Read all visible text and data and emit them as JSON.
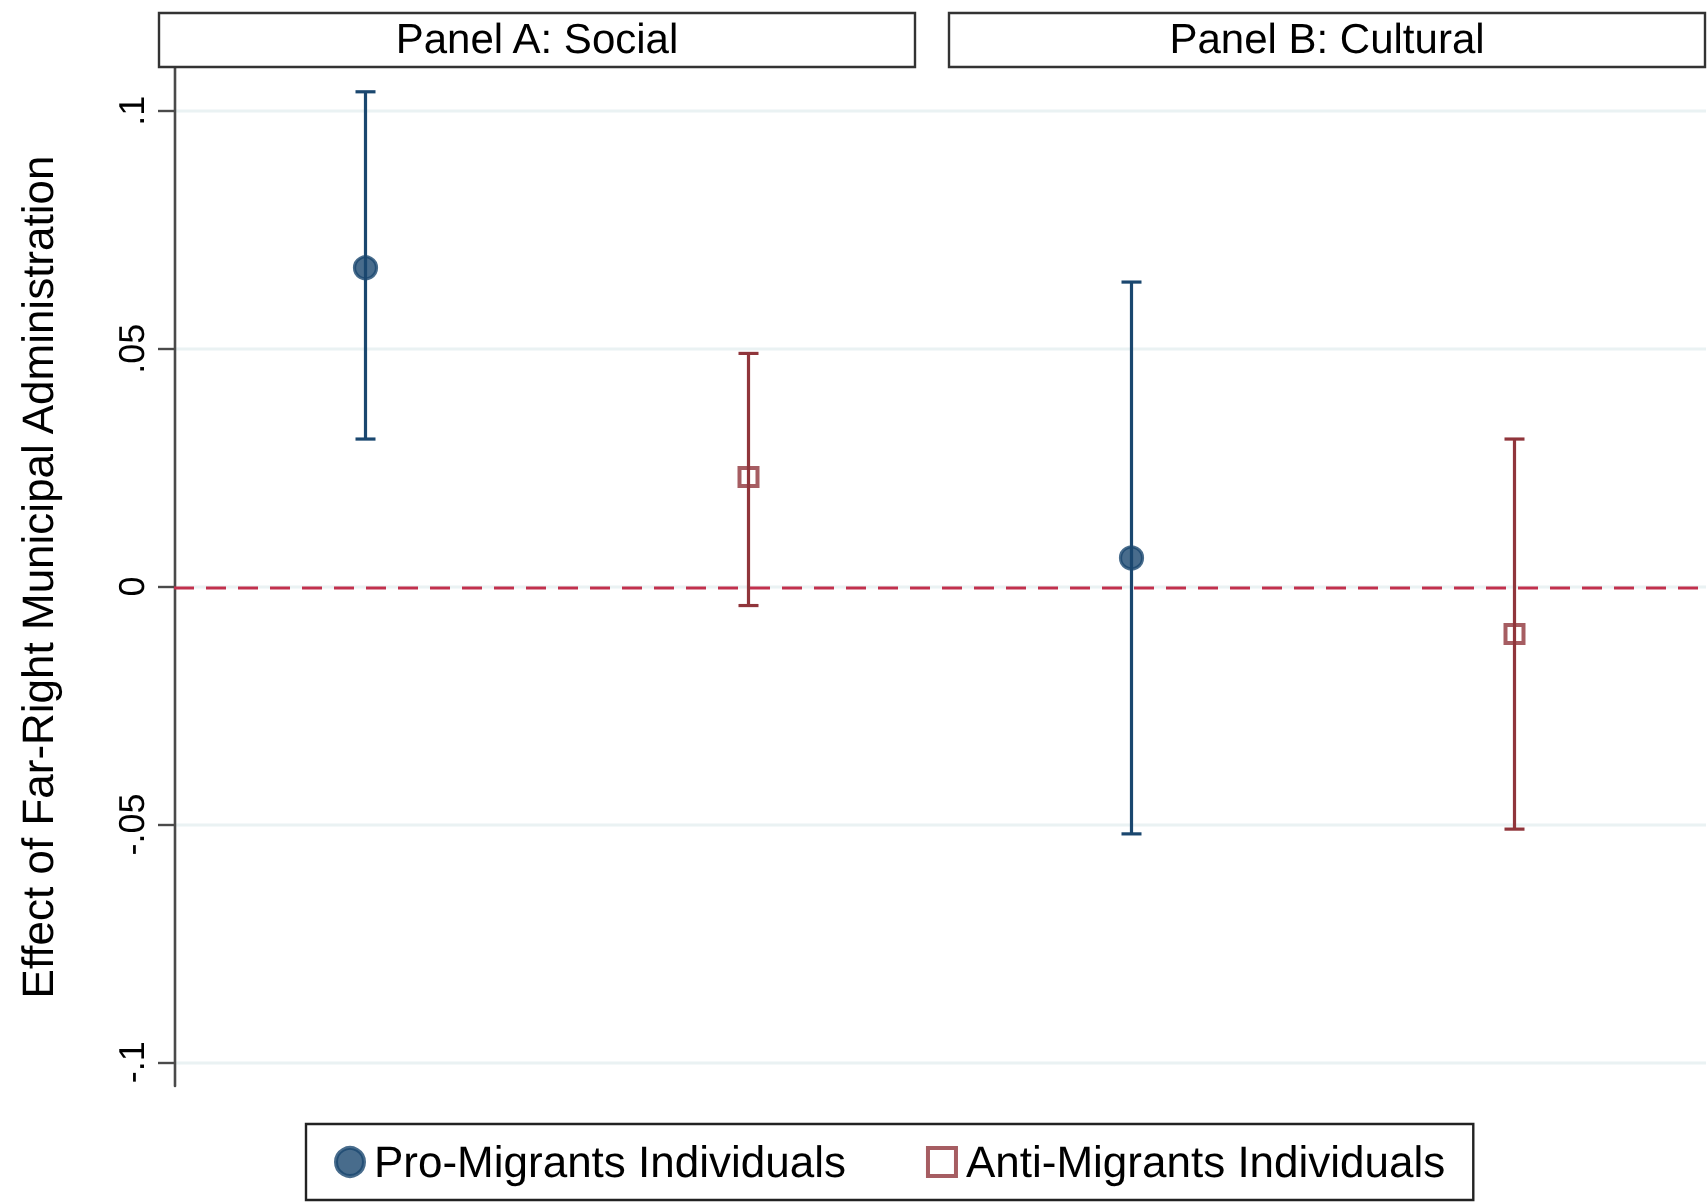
{
  "chart_data": {
    "type": "scatter",
    "ylabel": "Effect of Far-Right Municipal Administration",
    "annotations": [
      "Panel A: Social",
      "Panel B: Cultural"
    ],
    "categories": [
      null,
      null,
      null,
      null
    ],
    "series": [
      {
        "name": "Pro-Migrants Individuals",
        "color": "#1a476f",
        "marker": "circle",
        "values": [
          0.067,
          null,
          0.006,
          null
        ],
        "errors": [
          [
            0.031,
            0.104
          ],
          null,
          [
            -0.052,
            0.064
          ],
          null
        ]
      },
      {
        "name": "Anti-Migrants Individuals",
        "color": "#90353b",
        "marker": "square",
        "values": [
          null,
          0.023,
          null,
          -0.01
        ],
        "errors": [
          null,
          [
            -0.004,
            0.049
          ],
          null,
          [
            -0.051,
            0.031
          ]
        ]
      }
    ],
    "ylim": [
      -0.105,
      0.109
    ],
    "yticks": [
      {
        "value": -0.1,
        "label": "-.1"
      },
      {
        "value": -0.05,
        "label": "-.05"
      },
      0,
      {
        "value": 0.05,
        "label": ".05"
      },
      {
        "value": 0.1,
        "label": ".1"
      }
    ],
    "ref_lines": [
      {
        "axis": "y",
        "value": 0,
        "color": "#c1304d",
        "line_style": "dashed"
      }
    ],
    "grid": "y",
    "legend": "bottom",
    "tick_labels": "y"
  }
}
